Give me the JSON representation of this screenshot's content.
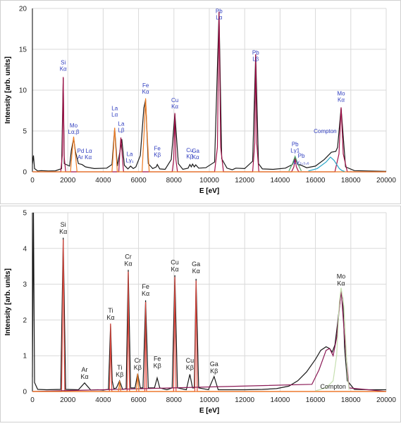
{
  "chart_data": [
    {
      "type": "line",
      "xlabel": "E [eV]",
      "ylabel": "Intensity [arb. units]",
      "xlim": [
        0,
        20000
      ],
      "ylim": [
        0,
        20
      ],
      "xticks": [
        "0",
        "2000",
        "4000",
        "6000",
        "8000",
        "10000",
        "12000",
        "14000",
        "16000",
        "18000",
        "20000"
      ],
      "yticks": [
        "0",
        "5",
        "10",
        "15",
        "20"
      ],
      "grid": true,
      "label_color": "#2f3dbf",
      "series": [
        {
          "color": "#1a1a1a",
          "width": 1.0,
          "x": [
            0,
            60,
            120,
            300,
            500,
            900,
            1300,
            1650,
            1740,
            1800,
            2100,
            2200,
            2330,
            2430,
            2600,
            2800,
            3000,
            3500,
            4200,
            4500,
            4650,
            4800,
            4950,
            5050,
            5200,
            5400,
            5550,
            5700,
            5850,
            6100,
            6300,
            6400,
            6550,
            6800,
            7000,
            7060,
            7200,
            7500,
            7850,
            8050,
            8250,
            8500,
            8800,
            8900,
            8980,
            9050,
            9150,
            9230,
            9400,
            9800,
            10300,
            10550,
            10700,
            11000,
            11300,
            11500,
            12000,
            12450,
            12620,
            12780,
            13000,
            13600,
            14300,
            14700,
            14850,
            15000,
            15200,
            15500,
            16000,
            16500,
            16900,
            17150,
            17250,
            17450,
            17700,
            18200,
            19000,
            20000
          ],
          "y": [
            0.9,
            2.0,
            0.4,
            0.1,
            0.15,
            0.1,
            0.12,
            0.4,
            11.5,
            1.0,
            0.7,
            2.6,
            4.1,
            2.5,
            1.0,
            0.9,
            0.6,
            0.4,
            0.45,
            0.9,
            5.3,
            0.7,
            2.5,
            4.0,
            0.8,
            0.35,
            0.7,
            0.4,
            0.6,
            2.0,
            7.8,
            8.8,
            1.0,
            0.4,
            0.6,
            0.9,
            0.35,
            0.3,
            1.5,
            7.1,
            1.0,
            0.3,
            0.45,
            0.9,
            0.6,
            0.95,
            0.6,
            0.85,
            0.45,
            0.5,
            1.2,
            19.5,
            1.6,
            0.45,
            0.25,
            0.45,
            0.4,
            1.3,
            14.3,
            1.0,
            0.35,
            0.3,
            0.45,
            0.9,
            1.8,
            0.9,
            0.8,
            0.5,
            0.7,
            1.5,
            2.4,
            2.5,
            3.0,
            7.8,
            0.6,
            0.15,
            0.1,
            0.05
          ]
        },
        {
          "color": "#a3114a",
          "width": 1.3,
          "x": [
            0,
            1600,
            1690,
            1740,
            1790,
            1880,
            4400,
            4880,
            4950,
            5000,
            5060,
            5150,
            7900,
            7990,
            8050,
            8110,
            8200,
            10300,
            10460,
            10550,
            10640,
            10800,
            12450,
            12570,
            12620,
            12680,
            12800,
            14650,
            14780,
            14850,
            14920,
            15050,
            17100,
            17330,
            17450,
            17570,
            17800,
            20000
          ],
          "y": [
            0,
            0,
            2.0,
            11.6,
            2.0,
            0,
            0,
            0,
            2.5,
            4.2,
            2.5,
            0,
            0,
            1.5,
            7.2,
            1.5,
            0,
            0,
            3.0,
            19.6,
            3.0,
            0,
            0,
            3.5,
            14.4,
            3.5,
            0,
            0,
            0.6,
            1.6,
            0.6,
            0,
            0,
            2.2,
            7.9,
            2.2,
            0,
            0
          ]
        },
        {
          "color": "#ee7b22",
          "width": 1.3,
          "x": [
            0,
            2150,
            2250,
            2330,
            2410,
            2520,
            4500,
            4590,
            4650,
            4710,
            4800,
            6200,
            6320,
            6400,
            6480,
            6600,
            20000
          ],
          "y": [
            0,
            0,
            2.6,
            4.3,
            2.6,
            0,
            0,
            3.0,
            5.4,
            3.0,
            0,
            0,
            5.0,
            9.0,
            5.0,
            0,
            0
          ]
        },
        {
          "color": "#2aa6c9",
          "width": 1.2,
          "x": [
            15600,
            16100,
            16600,
            16850,
            17050,
            17200,
            17350,
            17500,
            17650
          ],
          "y": [
            0.1,
            0.4,
            1.2,
            1.8,
            1.4,
            0.9,
            0.4,
            0.15,
            0.05
          ]
        },
        {
          "color": "#55a36a",
          "width": 1.1,
          "x": [
            14500,
            14700,
            14850,
            15000,
            15200
          ],
          "y": [
            0.1,
            1.0,
            1.9,
            1.0,
            0.1
          ]
        }
      ],
      "annotations": [
        {
          "lines": [
            "Si",
            "Kα"
          ],
          "x": 1740,
          "y": 12.1
        },
        {
          "lines": [
            "Mo",
            "Lα,β"
          ],
          "x": 2330,
          "y": 4.4
        },
        {
          "lines": [
            "Pd Lα",
            "Ar Kα"
          ],
          "x": 2950,
          "y": 1.3
        },
        {
          "lines": [
            "La",
            "Lα"
          ],
          "x": 4650,
          "y": 6.5
        },
        {
          "lines": [
            "La",
            "Lβ"
          ],
          "x": 5020,
          "y": 4.6
        },
        {
          "lines": [
            "La",
            "Lγ₁"
          ],
          "x": 5500,
          "y": 0.9
        },
        {
          "lines": [
            "Fe",
            "Kα"
          ],
          "x": 6400,
          "y": 9.3
        },
        {
          "lines": [
            "Fe",
            "Kβ"
          ],
          "x": 7060,
          "y": 1.6
        },
        {
          "lines": [
            "Cu",
            "Kα"
          ],
          "x": 8050,
          "y": 7.5
        },
        {
          "lines": [
            "Cu",
            "Kβ"
          ],
          "x": 8900,
          "y": 1.4
        },
        {
          "lines": [
            "Ga",
            "Kα"
          ],
          "x": 9230,
          "y": 1.3
        },
        {
          "lines": [
            "Pb",
            "Lα"
          ],
          "x": 10550,
          "y": 18.4
        },
        {
          "lines": [
            "Pb",
            "Lβ"
          ],
          "x": 12620,
          "y": 13.3
        },
        {
          "lines": [
            "Pb",
            "Lγ1"
          ],
          "x": 14850,
          "y": 2.1
        },
        {
          "lines": [
            "Pb",
            "Lγ₂,₃,₆"
          ],
          "x": 15200,
          "y": 0.7
        },
        {
          "lines": [
            "Compton"
          ],
          "x": 16550,
          "y": 4.5
        },
        {
          "lines": [
            "Mo",
            "Kα"
          ],
          "x": 17450,
          "y": 8.3
        }
      ]
    },
    {
      "type": "line",
      "xlabel": "E [eV]",
      "ylabel": "Intensity [arb. units]",
      "xlim": [
        0,
        20000
      ],
      "ylim": [
        0,
        5
      ],
      "xticks": [
        "0",
        "2000",
        "4000",
        "6000",
        "8000",
        "10000",
        "12000",
        "14000",
        "16000",
        "18000",
        "20000"
      ],
      "yticks": [
        "0",
        "1",
        "2",
        "3",
        "4",
        "5"
      ],
      "grid": true,
      "label_color": "#222222",
      "series": [
        {
          "color": "#1a1a1a",
          "width": 1.0,
          "x": [
            0,
            60,
            120,
            300,
            800,
            1600,
            1740,
            1880,
            2600,
            2950,
            3300,
            3700,
            4000,
            4300,
            4420,
            4510,
            4600,
            4750,
            4930,
            5100,
            5300,
            5420,
            5550,
            5800,
            5950,
            6100,
            6250,
            6400,
            6550,
            6900,
            7050,
            7200,
            7600,
            7900,
            8050,
            8200,
            8700,
            8900,
            9050,
            9150,
            9250,
            9400,
            9950,
            10270,
            10500,
            11000,
            12000,
            13000,
            13800,
            14500,
            15000,
            15500,
            16000,
            16300,
            16600,
            16800,
            16950,
            17100,
            17250,
            17450,
            17550,
            17650,
            17800,
            18200,
            19000,
            20000
          ],
          "y": [
            0.4,
            5.0,
            0.25,
            0.06,
            0.05,
            0.06,
            4.3,
            0.06,
            0.05,
            0.24,
            0.04,
            0.05,
            0.04,
            0.06,
            1.9,
            0.3,
            0.08,
            0.1,
            0.3,
            0.06,
            0.08,
            3.4,
            0.1,
            0.1,
            0.5,
            0.1,
            0.1,
            2.55,
            0.1,
            0.1,
            0.38,
            0.1,
            0.05,
            0.1,
            3.25,
            0.1,
            0.05,
            0.48,
            0.1,
            0.1,
            3.15,
            0.1,
            0.05,
            0.42,
            0.05,
            0.05,
            0.05,
            0.06,
            0.08,
            0.15,
            0.3,
            0.55,
            0.9,
            1.15,
            1.25,
            1.2,
            1.1,
            1.3,
            1.9,
            2.8,
            2.6,
            1.2,
            0.3,
            0.06,
            0.05,
            0.05
          ]
        },
        {
          "color": "#e04a40",
          "width": 1.3,
          "x": [
            0,
            1650,
            1700,
            1740,
            1780,
            1830,
            4350,
            4400,
            4420,
            4440,
            4490,
            5350,
            5400,
            5420,
            5440,
            5490,
            6350,
            6380,
            6400,
            6420,
            6450,
            7980,
            8020,
            8050,
            8080,
            8120,
            9180,
            9220,
            9250,
            9280,
            9320,
            20000
          ],
          "y": [
            0,
            0,
            2.0,
            4.25,
            2.0,
            0,
            0,
            1.0,
            1.9,
            1.0,
            0,
            0,
            1.8,
            3.35,
            1.8,
            0,
            0,
            1.4,
            2.5,
            1.4,
            0,
            0,
            1.7,
            3.2,
            1.7,
            0,
            0,
            1.7,
            3.1,
            1.7,
            0,
            0
          ]
        },
        {
          "color": "#8b1a56",
          "width": 1.3,
          "x": [
            0,
            15800,
            16200,
            16600,
            16800,
            17000,
            17200,
            17450,
            17650,
            17900,
            20000
          ],
          "y": [
            0,
            0.2,
            0.6,
            1.15,
            1.2,
            1.0,
            1.5,
            2.85,
            1.5,
            0.1,
            0
          ]
        },
        {
          "color": "#ee7b22",
          "width": 1.2,
          "x": [
            0,
            4860,
            4900,
            4930,
            4960,
            5000,
            5880,
            5920,
            5950,
            5980,
            6020,
            20000
          ],
          "y": [
            0,
            0,
            0.15,
            0.3,
            0.15,
            0,
            0,
            0.28,
            0.5,
            0.28,
            0,
            0
          ]
        },
        {
          "color": "#c6dfb0",
          "width": 1.2,
          "x": [
            16000,
            16600,
            17000,
            17200,
            17350,
            17450,
            17600,
            17700,
            17800,
            17900
          ],
          "y": [
            0.02,
            0.1,
            0.3,
            1.0,
            2.5,
            2.9,
            2.4,
            1.5,
            0.5,
            0.05
          ]
        }
      ],
      "annotations": [
        {
          "lines": [
            "Si",
            "Kα"
          ],
          "x": 1740,
          "y": 4.35
        },
        {
          "lines": [
            "Ar",
            "Kα"
          ],
          "x": 2950,
          "y": 0.3
        },
        {
          "lines": [
            "Ti",
            "Kα"
          ],
          "x": 4420,
          "y": 1.95
        },
        {
          "lines": [
            "Ti",
            "Kβ"
          ],
          "x": 4930,
          "y": 0.35
        },
        {
          "lines": [
            "Cr",
            "Kα"
          ],
          "x": 5420,
          "y": 3.45
        },
        {
          "lines": [
            "Cr",
            "Kβ"
          ],
          "x": 5950,
          "y": 0.55
        },
        {
          "lines": [
            "Fe",
            "Kα"
          ],
          "x": 6400,
          "y": 2.62
        },
        {
          "lines": [
            "Fe",
            "Kβ"
          ],
          "x": 7060,
          "y": 0.6
        },
        {
          "lines": [
            "Cu",
            "Kα"
          ],
          "x": 8050,
          "y": 3.3
        },
        {
          "lines": [
            "Cu",
            "Kβ"
          ],
          "x": 8900,
          "y": 0.55
        },
        {
          "lines": [
            "Ga",
            "Kα"
          ],
          "x": 9250,
          "y": 3.25
        },
        {
          "lines": [
            "Ga",
            "Kβ"
          ],
          "x": 10270,
          "y": 0.45
        },
        {
          "lines": [
            "Compton"
          ],
          "x": 17000,
          "y": 0.02
        },
        {
          "lines": [
            "Mo",
            "Kα"
          ],
          "x": 17450,
          "y": 2.9
        }
      ]
    }
  ]
}
